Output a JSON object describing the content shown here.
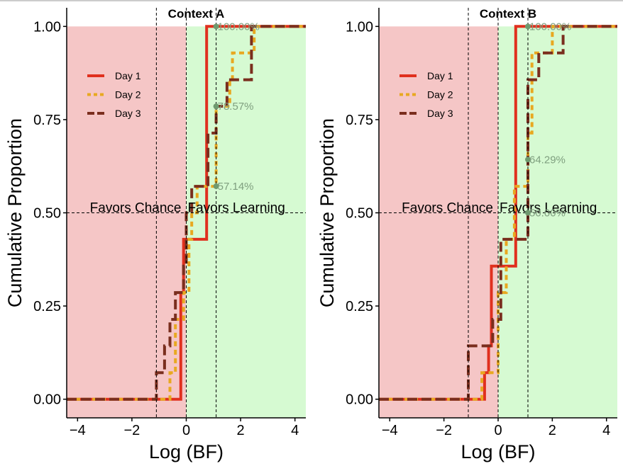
{
  "chart_data": [
    {
      "type": "line",
      "subtype": "ecdf-step",
      "title": "Context A",
      "xlabel": "Log (BF)",
      "ylabel": "Cumulative Proportion",
      "xlim": [
        -4.4,
        4.4
      ],
      "ylim": [
        -0.05,
        1.05
      ],
      "xticks": [
        -4,
        -2,
        0,
        2,
        4
      ],
      "xtick_labels": [
        "−4",
        "−2",
        "0",
        "2",
        "4"
      ],
      "yticks": [
        0,
        0.25,
        0.5,
        0.75,
        1
      ],
      "ytick_labels": [
        "0.00",
        "0.25",
        "0.50",
        "0.75",
        "1.00"
      ],
      "grid": false,
      "legend_position": "top-left",
      "regions": [
        {
          "label": "Favors Chance",
          "x_range": [
            -4.4,
            0
          ],
          "color": "#f5c6c6"
        },
        {
          "label": "Favors Learning",
          "x_range": [
            0,
            4.4
          ],
          "color": "#d6fad2"
        }
      ],
      "reference_lines": {
        "vertical": [
          -1.1,
          0,
          1.1
        ],
        "horizontal": [
          0.5
        ]
      },
      "series": [
        {
          "name": "Day 1",
          "color": "#e0301e",
          "dash": "solid",
          "steps": [
            [
              -4.4,
              0
            ],
            [
              -0.2,
              0.286
            ],
            [
              -0.1,
              0.429
            ],
            [
              0.75,
              1.0
            ],
            [
              4.4,
              1.0
            ]
          ]
        },
        {
          "name": "Day 2",
          "color": "#e8a820",
          "dash": "short",
          "steps": [
            [
              -4.4,
              0
            ],
            [
              -0.6,
              0.071
            ],
            [
              -0.4,
              0.214
            ],
            [
              -0.1,
              0.286
            ],
            [
              0.1,
              0.429
            ],
            [
              0.2,
              0.5
            ],
            [
              0.4,
              0.571
            ],
            [
              1.1,
              0.786
            ],
            [
              1.6,
              0.857
            ],
            [
              1.7,
              0.929
            ],
            [
              2.5,
              1.0
            ],
            [
              4.4,
              1.0
            ]
          ]
        },
        {
          "name": "Day 3",
          "color": "#7a2e1e",
          "dash": "long",
          "steps": [
            [
              -4.4,
              0
            ],
            [
              -1.1,
              0.071
            ],
            [
              -0.8,
              0.143
            ],
            [
              -0.6,
              0.214
            ],
            [
              -0.4,
              0.286
            ],
            [
              -0.1,
              0.357
            ],
            [
              0.0,
              0.5
            ],
            [
              0.2,
              0.571
            ],
            [
              0.8,
              0.714
            ],
            [
              1.1,
              0.786
            ],
            [
              1.5,
              0.857
            ],
            [
              2.4,
              1.0
            ],
            [
              4.4,
              1.0
            ]
          ]
        }
      ],
      "annotations": [
        {
          "x": 1.1,
          "y": 0.5714,
          "label": "57.14%"
        },
        {
          "x": 1.1,
          "y": 0.7857,
          "label": "78.57%"
        },
        {
          "x": 1.1,
          "y": 1.0,
          "label": "100.00%"
        }
      ]
    },
    {
      "type": "line",
      "subtype": "ecdf-step",
      "title": "Context B",
      "xlabel": "Log (BF)",
      "ylabel": "Cumulative Proportion",
      "xlim": [
        -4.4,
        4.4
      ],
      "ylim": [
        -0.05,
        1.05
      ],
      "xticks": [
        -4,
        -2,
        0,
        2,
        4
      ],
      "xtick_labels": [
        "−4",
        "−2",
        "0",
        "2",
        "4"
      ],
      "yticks": [
        0,
        0.25,
        0.5,
        0.75,
        1
      ],
      "ytick_labels": [
        "0.00",
        "0.25",
        "0.50",
        "0.75",
        "1.00"
      ],
      "grid": false,
      "legend_position": "top-left",
      "regions": [
        {
          "label": "Favors Chance",
          "x_range": [
            -4.4,
            0
          ],
          "color": "#f5c6c6"
        },
        {
          "label": "Favors Learning",
          "x_range": [
            0,
            4.4
          ],
          "color": "#d6fad2"
        }
      ],
      "reference_lines": {
        "vertical": [
          -1.1,
          0,
          1.1
        ],
        "horizontal": [
          0.5
        ]
      },
      "series": [
        {
          "name": "Day 1",
          "color": "#e0301e",
          "dash": "solid",
          "steps": [
            [
              -4.4,
              0
            ],
            [
              -0.5,
              0.071
            ],
            [
              -0.35,
              0.143
            ],
            [
              -0.25,
              0.357
            ],
            [
              0.65,
              1.0
            ],
            [
              4.4,
              1.0
            ]
          ]
        },
        {
          "name": "Day 2",
          "color": "#e8a820",
          "dash": "short",
          "steps": [
            [
              -4.4,
              0
            ],
            [
              -0.6,
              0.071
            ],
            [
              0.0,
              0.286
            ],
            [
              0.3,
              0.429
            ],
            [
              0.6,
              0.571
            ],
            [
              1.1,
              0.714
            ],
            [
              1.25,
              0.929
            ],
            [
              2.0,
              1.0
            ],
            [
              4.4,
              1.0
            ]
          ]
        },
        {
          "name": "Day 3",
          "color": "#7a2e1e",
          "dash": "long",
          "steps": [
            [
              -4.4,
              0
            ],
            [
              -1.1,
              0.143
            ],
            [
              -0.2,
              0.214
            ],
            [
              0.1,
              0.429
            ],
            [
              1.1,
              0.857
            ],
            [
              1.5,
              0.929
            ],
            [
              2.4,
              1.0
            ],
            [
              4.4,
              1.0
            ]
          ]
        }
      ],
      "annotations": [
        {
          "x": 1.1,
          "y": 0.5,
          "label": "50.00%"
        },
        {
          "x": 1.1,
          "y": 0.6429,
          "label": "64.29%"
        },
        {
          "x": 1.1,
          "y": 1.0,
          "label": "100.00%"
        }
      ]
    }
  ]
}
